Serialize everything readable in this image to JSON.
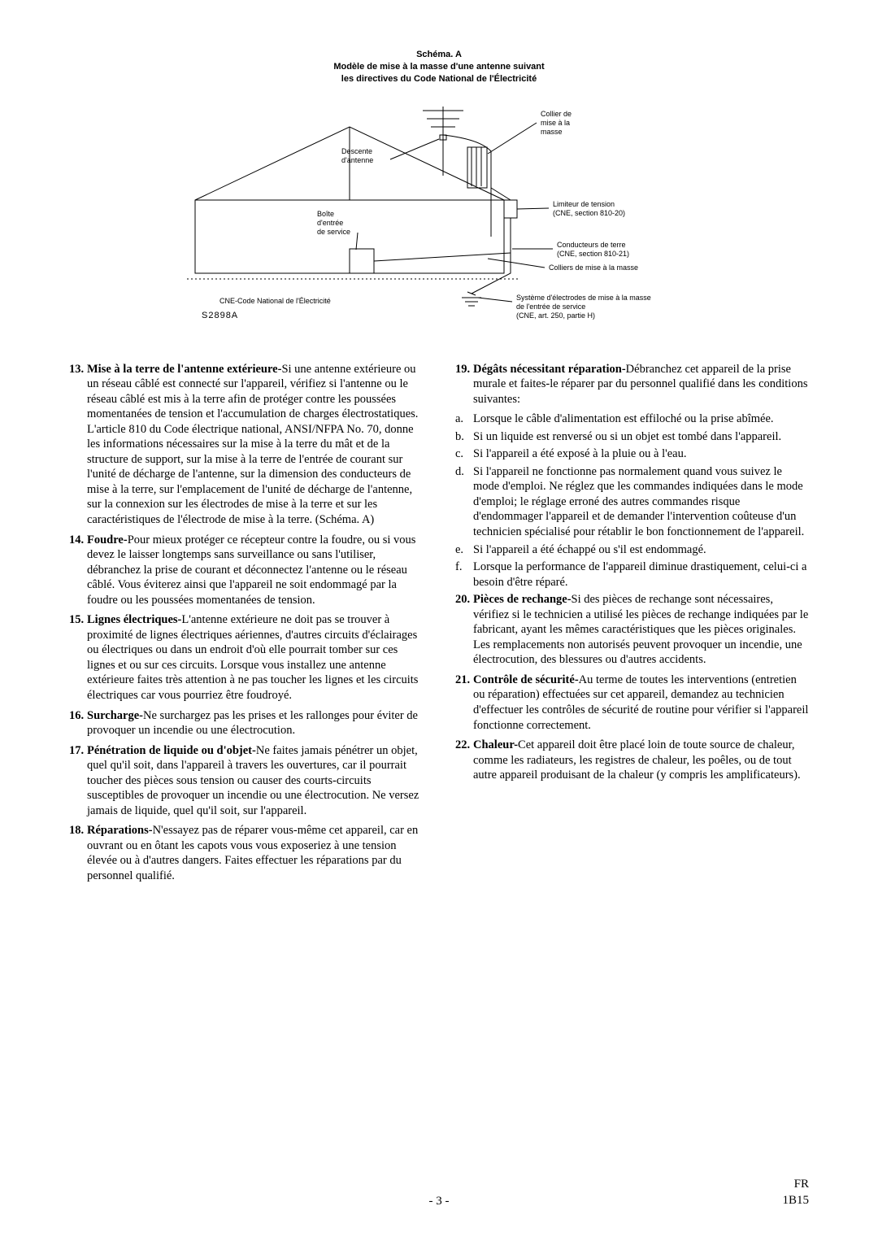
{
  "diagram": {
    "title_lines": [
      "Schéma. A",
      "Modèle de mise à la masse d'une antenne suivant",
      "les directives du Code National de l'Électricité"
    ],
    "labels": {
      "descente": "Descente\nd'antenne",
      "collier": "Collier de\nmise à la\nmasse",
      "limiteur": "Limiteur de tension\n(CNE, section 810-20)",
      "boite": "Boîte\nd'entrée\nde service",
      "conducteurs": "Conducteurs de terre\n(CNE, section 810-21)",
      "colliers_masse": "Colliers de mise à la masse",
      "systeme": "Système d'électrodes de mise à la masse\nde l'entrée de service\n(CNE, art. 250, partie H)",
      "cne_note": "CNE-Code National de l'Électricité",
      "serial": "S2898A"
    },
    "colors": {
      "stroke": "#000000",
      "bg": "#ffffff"
    }
  },
  "left": [
    {
      "num": "13.",
      "lead": "Mise à la terre de l'antenne extérieure-",
      "text": "Si une antenne extérieure ou un réseau câblé est connecté sur l'appareil, vérifiez si l'antenne ou le réseau câblé est mis à la terre afin de protéger contre les poussées momentanées de tension et l'accumulation de charges électrostatiques. L'article 810 du Code électrique national, ANSI/NFPA No. 70, donne les informations nécessaires sur la mise à la terre du mât et de la structure de support, sur la mise à la terre de l'entrée de courant sur l'unité de décharge de l'antenne, sur la dimension des conducteurs de mise à la terre, sur l'emplacement de l'unité de décharge de l'antenne, sur la connexion sur les électrodes de mise à la terre et sur les caractéristiques de l'électrode de mise à la terre. (Schéma. A)"
    },
    {
      "num": "14.",
      "lead": "Foudre-",
      "text": "Pour mieux protéger ce récepteur contre la foudre, ou si vous devez le laisser longtemps sans surveillance ou sans l'utiliser, débranchez la prise de courant et déconnectez l'antenne ou le réseau câblé. Vous éviterez ainsi que l'appareil ne soit endommagé par la foudre ou les poussées momentanées de tension."
    },
    {
      "num": "15.",
      "lead": "Lignes électriques-",
      "text": "L'antenne extérieure ne doit pas se trouver à proximité de lignes électriques aériennes, d'autres circuits d'éclairages ou électriques ou dans un endroit d'où elle pourrait tomber sur ces lignes et ou sur ces circuits. Lorsque vous installez une antenne extérieure faites très attention à ne pas toucher les lignes et les circuits électriques car vous pourriez être foudroyé."
    },
    {
      "num": "16.",
      "lead": "Surcharge-",
      "text": "Ne surchargez pas les prises et les rallonges pour éviter de provoquer un incendie ou une électrocution."
    },
    {
      "num": "17.",
      "lead": "Pénétration de liquide ou d'objet-",
      "text": "Ne faites jamais pénétrer un objet, quel qu'il soit, dans l'appareil à travers les ouvertures, car il pourrait toucher des pièces sous tension ou causer des courts-circuits susceptibles de provoquer un incendie ou une électrocution. Ne versez jamais de liquide, quel qu'il soit, sur l'appareil."
    },
    {
      "num": "18.",
      "lead": "Réparations-",
      "text": "N'essayez pas de réparer vous-même cet appareil, car en ouvrant ou en ôtant les capots vous vous exposeriez à une tension élevée ou à d'autres dangers. Faites effectuer les réparations par du personnel qualifié."
    }
  ],
  "right": [
    {
      "num": "19.",
      "lead": "Dégâts nécessitant réparation-",
      "text": "Débranchez cet appareil de la prise murale et faites-le réparer par du personnel qualifié dans les conditions suivantes:"
    }
  ],
  "right_sub": [
    {
      "l": "a.",
      "t": "Lorsque le câble d'alimentation est effiloché ou la prise abîmée."
    },
    {
      "l": "b.",
      "t": "Si un liquide est renversé ou si un objet est tombé dans l'appareil."
    },
    {
      "l": "c.",
      "t": "Si l'appareil a été exposé à la pluie ou à l'eau."
    },
    {
      "l": "d.",
      "t": "Si l'appareil ne fonctionne pas normalement quand vous suivez le mode d'emploi. Ne réglez que les commandes indiquées dans le mode d'emploi; le réglage erroné des autres commandes risque d'endommager l'appareil et de demander l'intervention coûteuse d'un technicien spécialisé pour rétablir le bon fonctionnement de l'appareil."
    },
    {
      "l": "e.",
      "t": "Si l'appareil a été échappé ou s'il est endommagé."
    },
    {
      "l": "f.",
      "t": "Lorsque la performance de l'appareil diminue drastiquement, celui-ci a besoin d'être réparé."
    }
  ],
  "right2": [
    {
      "num": "20.",
      "lead": "Pièces de rechange-",
      "text": "Si des pièces de rechange sont nécessaires, vérifiez si le technicien a utilisé les pièces de rechange indiquées par le fabricant, ayant les mêmes caractéristiques que les pièces originales. Les remplacements non autorisés peuvent provoquer un incendie, une électrocution, des blessures ou d'autres accidents."
    },
    {
      "num": "21.",
      "lead": "Contrôle de sécurité-",
      "text": "Au terme de toutes les interventions (entretien ou réparation) effectuées sur cet appareil, demandez au technicien d'effectuer les contrôles de sécurité de routine pour vérifier si l'appareil fonctionne correctement."
    },
    {
      "num": "22.",
      "lead": "Chaleur-",
      "text": "Cet appareil doit être placé loin de toute source de chaleur, comme les radiateurs, les registres de chaleur, les poêles, ou de tout autre appareil produisant de la chaleur (y compris les amplificateurs)."
    }
  ],
  "footer": {
    "page": "- 3 -",
    "lang": "FR",
    "code": "1B15"
  }
}
